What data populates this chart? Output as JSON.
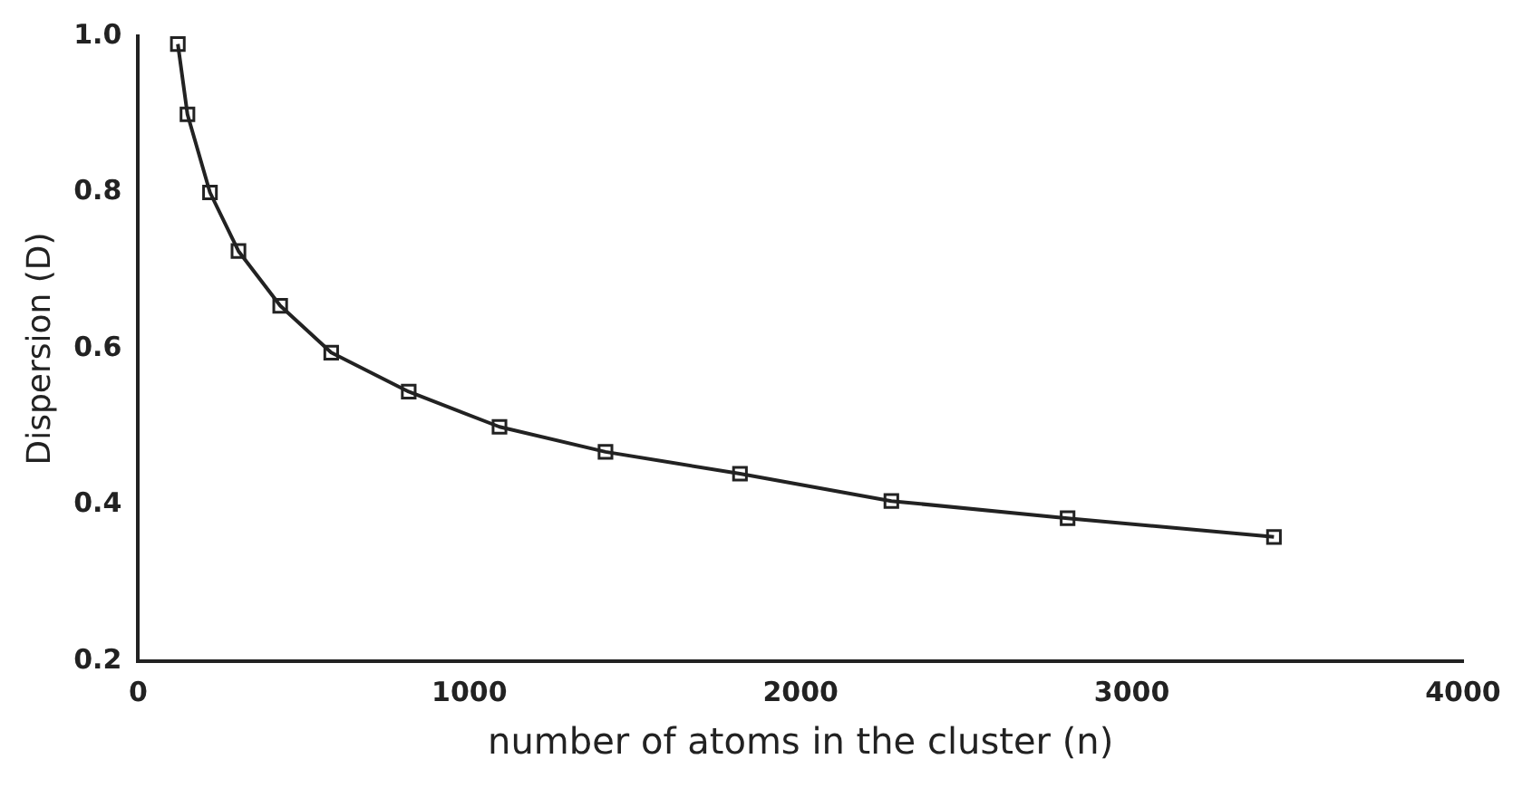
{
  "chart_data": {
    "type": "line",
    "xlabel": "number of atoms in the cluster (n)",
    "ylabel": "Dispersion (D)",
    "x": [
      120,
      149,
      217,
      303,
      429,
      583,
      817,
      1091,
      1411,
      1817,
      2274,
      2806,
      3429
    ],
    "values": [
      0.99,
      0.9,
      0.8,
      0.725,
      0.655,
      0.595,
      0.545,
      0.5,
      0.468,
      0.44,
      0.405,
      0.383,
      0.359
    ],
    "color": "#222222",
    "marker": "square",
    "line_style": "solid",
    "grid": false,
    "legend": false,
    "xlim": [
      0,
      4000
    ],
    "xticks": [
      0,
      1000,
      2000,
      3000,
      4000
    ],
    "ylim": [
      0.2,
      1.0
    ],
    "yticks": [
      0.2,
      0.4,
      0.6,
      0.8,
      {
        "value": 1,
        "label": "1.0"
      }
    ]
  }
}
